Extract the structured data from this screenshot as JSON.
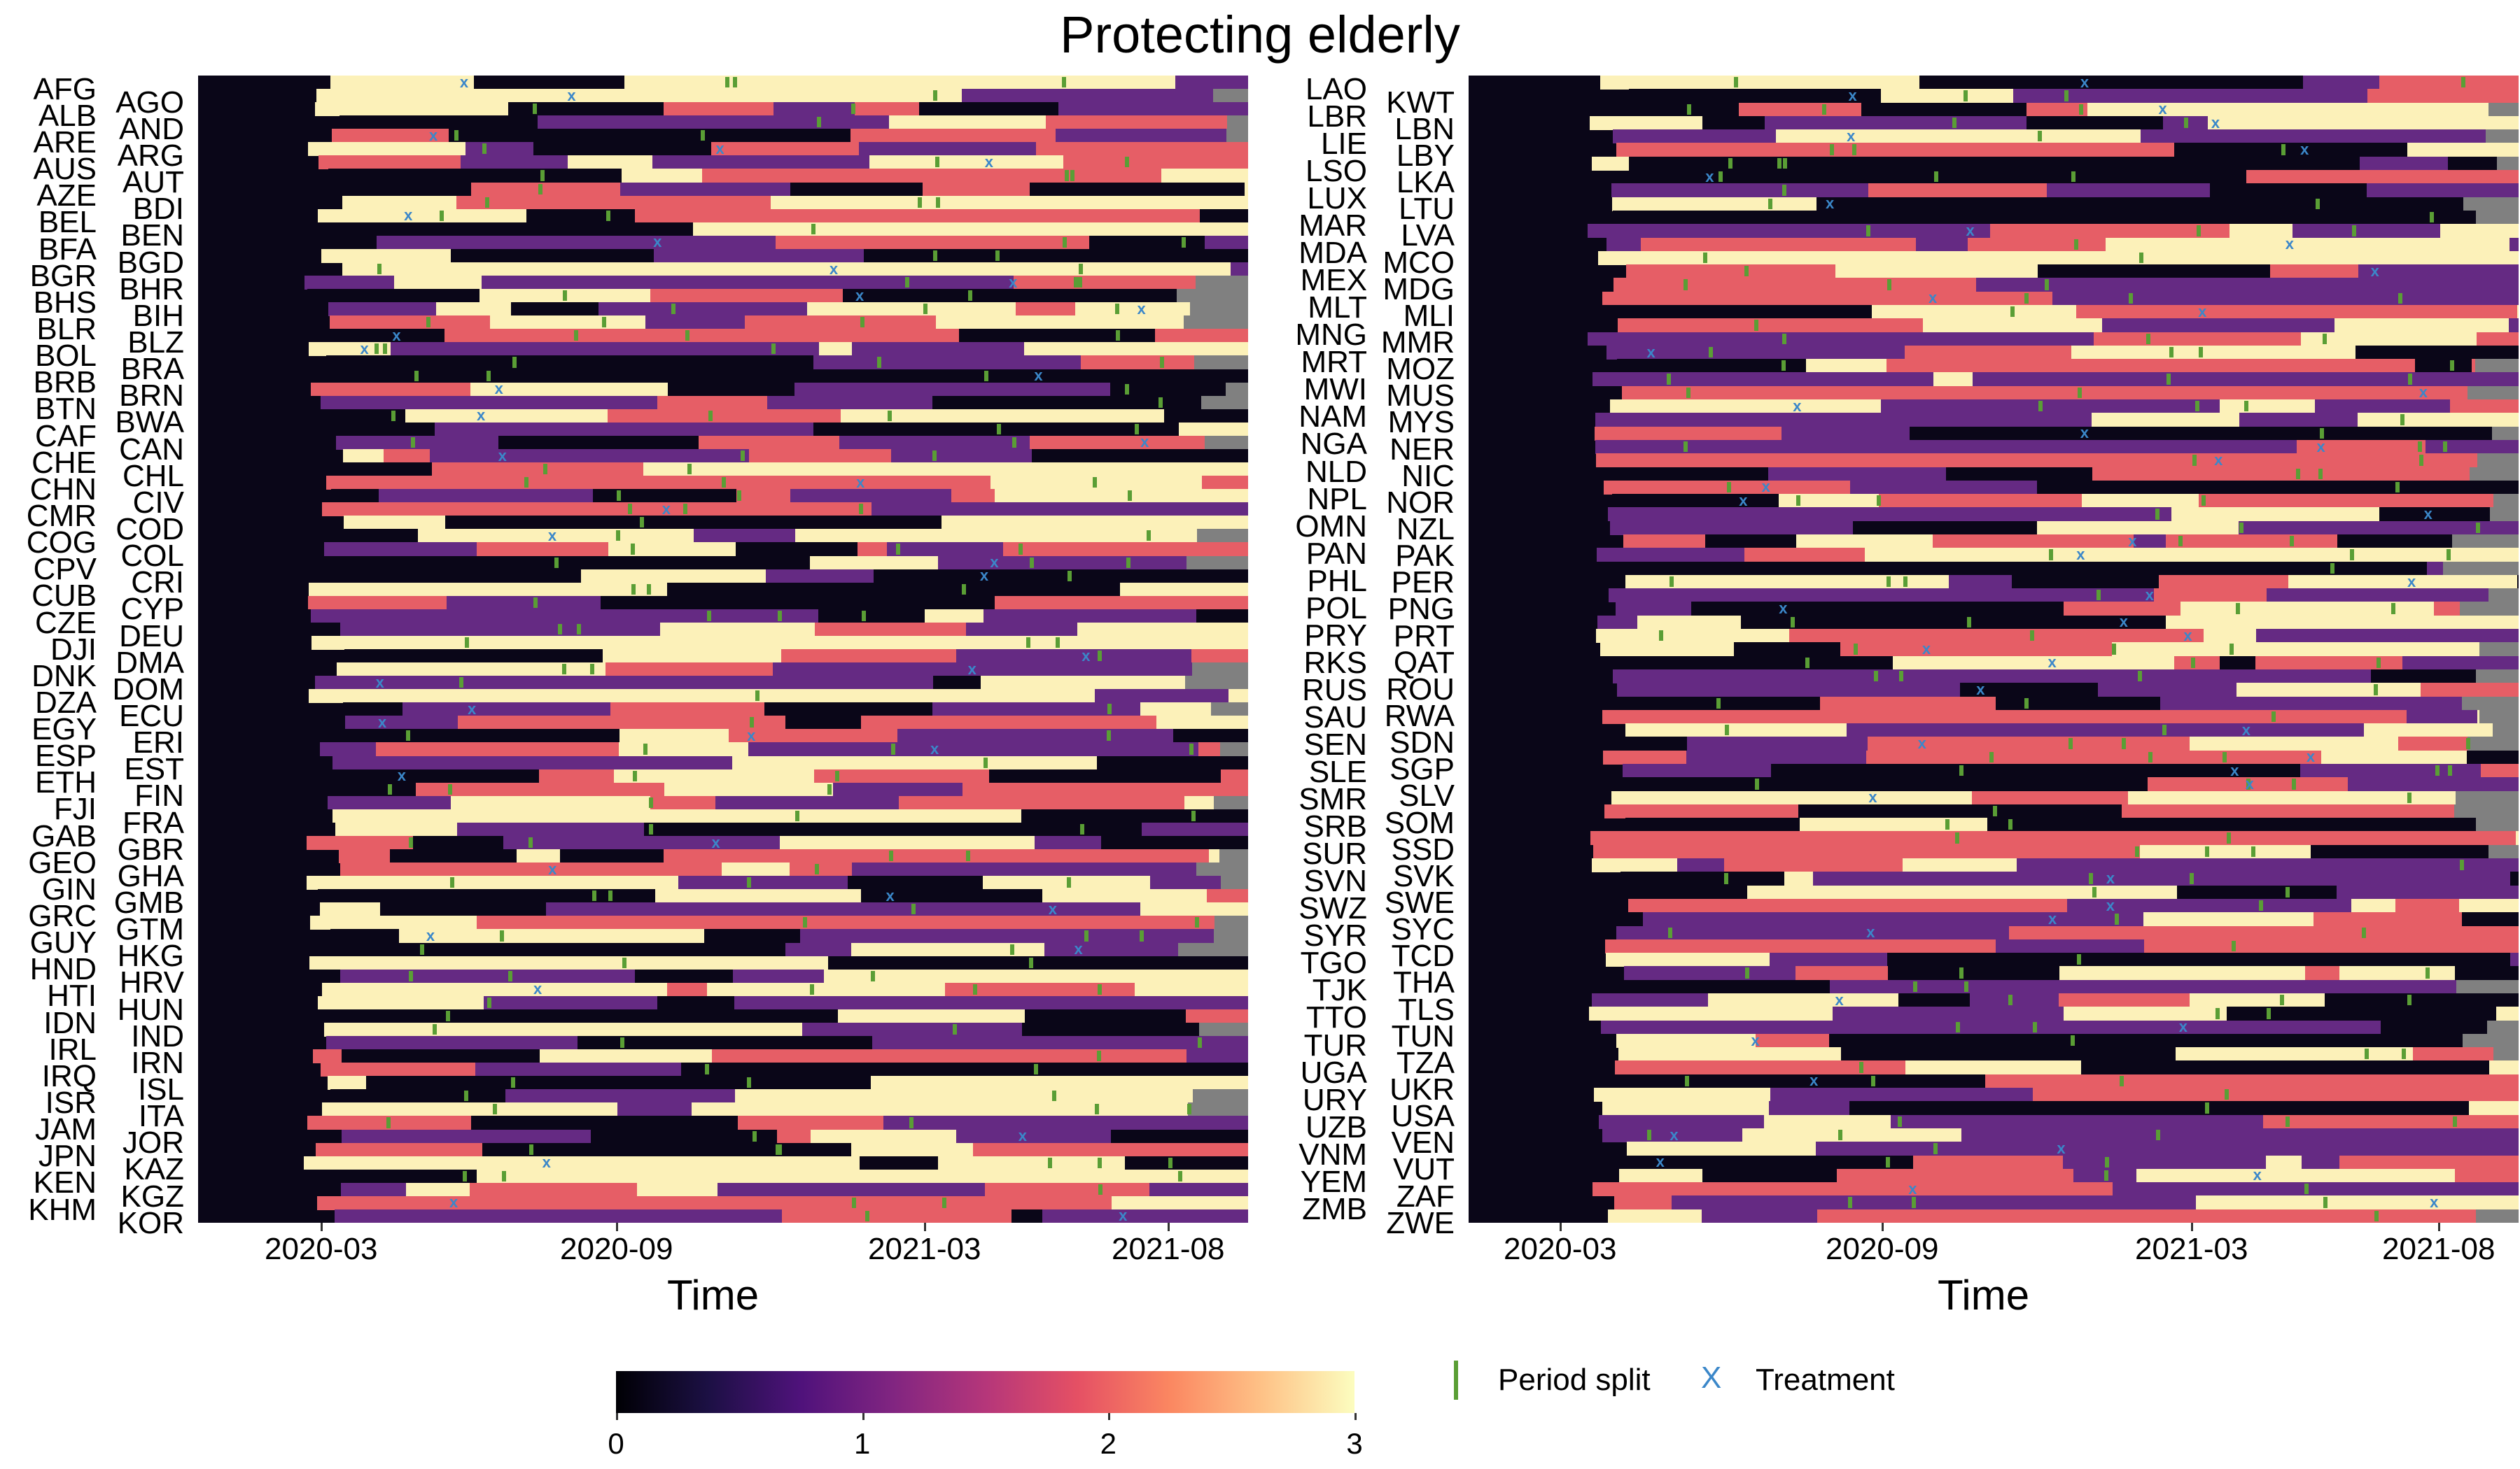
{
  "chart_data": {
    "type": "heatmap",
    "title": "Protecting elderly",
    "xlabel": "Time",
    "x_ticks": [
      "2020-03",
      "2020-09",
      "2021-03",
      "2021-08"
    ],
    "x_range": [
      "2020-01",
      "2021-09"
    ],
    "colorbar": {
      "min": 0,
      "max": 3,
      "ticks": [
        "0",
        "1",
        "2",
        "3"
      ],
      "palette": "magma"
    },
    "colors": {
      "0": "#0a0618",
      "1": "#652a83",
      "2": "#e65e66",
      "3": "#fcf1b9",
      "missing": "#808080",
      "split": "#5a9e35",
      "treatment": "#3b87c9"
    },
    "legend": {
      "split_label": "Period split",
      "treatment_marker": "X",
      "treatment_label": "Treatment"
    },
    "panels": [
      {
        "countries_outer": [
          "AFG",
          "ALB",
          "ARE",
          "AUS",
          "AZE",
          "BEL",
          "BFA",
          "BGR",
          "BHS",
          "BLR",
          "BOL",
          "BRB",
          "BTN",
          "CAF",
          "CHE",
          "CHN",
          "CMR",
          "COG",
          "CPV",
          "CUB",
          "CZE",
          "DJI",
          "DNK",
          "DZA",
          "EGY",
          "ESP",
          "ETH",
          "FJI",
          "GAB",
          "GEO",
          "GIN",
          "GRC",
          "GUY",
          "HND",
          "HTI",
          "IDN",
          "IRL",
          "IRQ",
          "ISR",
          "JAM",
          "JPN",
          "KEN",
          "KHM"
        ],
        "countries_inner": [
          "AGO",
          "AND",
          "ARG",
          "AUT",
          "BDI",
          "BEN",
          "BGD",
          "BHR",
          "BIH",
          "BLZ",
          "BRA",
          "BRN",
          "BWA",
          "CAN",
          "CHL",
          "CIV",
          "COD",
          "COL",
          "CRI",
          "CYP",
          "DEU",
          "DMA",
          "DOM",
          "ECU",
          "ERI",
          "EST",
          "FIN",
          "FRA",
          "GBR",
          "GHA",
          "GMB",
          "GTM",
          "HKG",
          "HRV",
          "HUN",
          "IND",
          "IRN",
          "ISL",
          "ITA",
          "JOR",
          "KAZ",
          "KGZ",
          "KOR"
        ]
      },
      {
        "countries_outer": [
          "LAO",
          "LBR",
          "LIE",
          "LSO",
          "LUX",
          "MAR",
          "MDA",
          "MEX",
          "MLT",
          "MNG",
          "MRT",
          "MWI",
          "NAM",
          "NGA",
          "NLD",
          "NPL",
          "OMN",
          "PAN",
          "PHL",
          "POL",
          "PRY",
          "RKS",
          "RUS",
          "SAU",
          "SEN",
          "SLE",
          "SMR",
          "SRB",
          "SUR",
          "SVN",
          "SWZ",
          "SYR",
          "TGO",
          "TJK",
          "TTO",
          "TUR",
          "UGA",
          "URY",
          "UZB",
          "VNM",
          "YEM",
          "ZMB"
        ],
        "countries_inner": [
          "KWT",
          "LBN",
          "LBY",
          "LKA",
          "LTU",
          "LVA",
          "MCO",
          "MDG",
          "MLI",
          "MMR",
          "MOZ",
          "MUS",
          "MYS",
          "NER",
          "NIC",
          "NOR",
          "NZL",
          "PAK",
          "PER",
          "PNG",
          "PRT",
          "QAT",
          "ROU",
          "RWA",
          "SDN",
          "SGP",
          "SLV",
          "SOM",
          "SSD",
          "SVK",
          "SWE",
          "SYC",
          "TCD",
          "THA",
          "TLS",
          "TUN",
          "TZA",
          "UKR",
          "USA",
          "VEN",
          "VUT",
          "ZAF",
          "ZWE"
        ]
      }
    ]
  }
}
